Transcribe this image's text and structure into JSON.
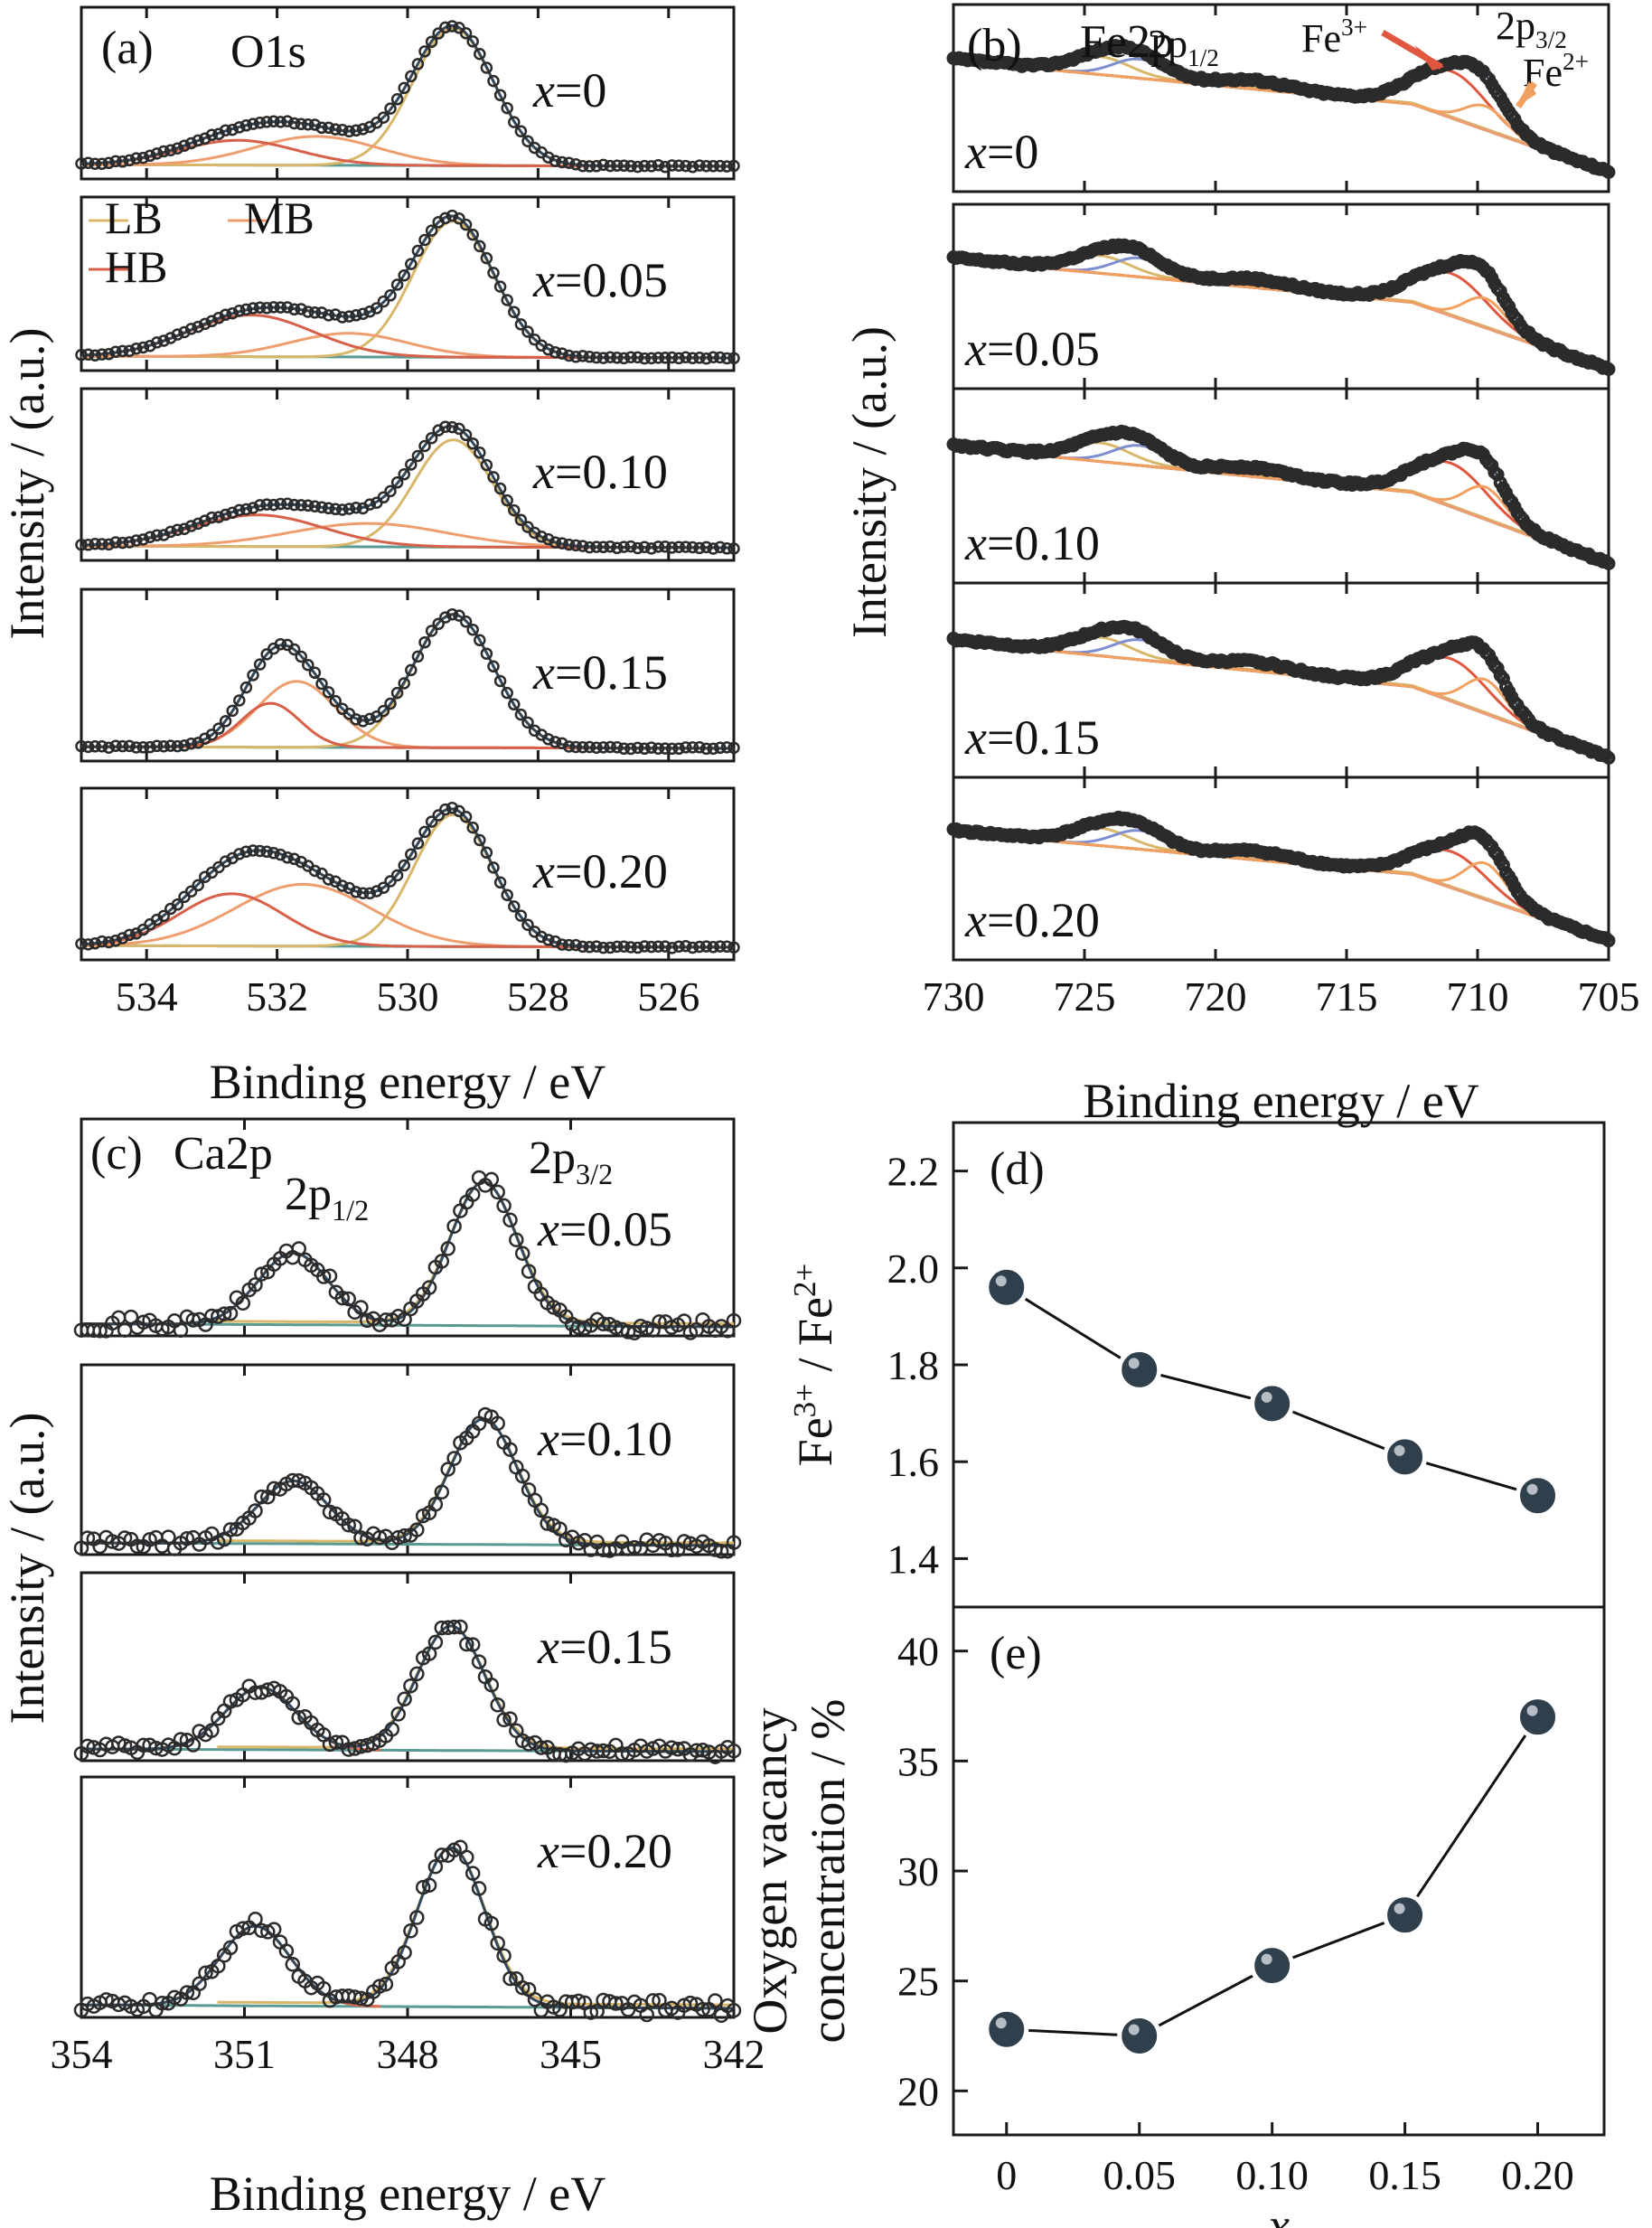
{
  "colors": {
    "frame": "#1a1a1a",
    "data_marker": "#2b2b2b",
    "envelope": "#33485a",
    "baseline": "#5a9a94",
    "LB": "#d9b76a",
    "MB": "#ee9e6e",
    "HB": "#d6604a",
    "fe_2p12_component": "#7d8ed0",
    "fe3_component": "#e0573f",
    "fe2_component": "#f0a060",
    "ca_2p12_component": "#e06a50",
    "ca_2p32_component": "#d9b76a",
    "scatter_marker": "#2f3f4c"
  },
  "chart_data": [
    {
      "id": "a",
      "type": "line",
      "panel_label": "(a)",
      "element_label": "O1s",
      "xlabel": "Binding energy / eV",
      "ylabel": "Intensity / (a.u.)",
      "xlim": [
        535,
        525
      ],
      "xticks": [
        "534",
        "532",
        "530",
        "528",
        "526"
      ],
      "legend": [
        "LB",
        "MB",
        "HB"
      ],
      "series": [
        {
          "x_label_prefix": "x",
          "x_label_value": "=0",
          "peaks": [
            {
              "name": "LB",
              "center": 529.3,
              "width": 0.62,
              "amp": 1.0
            },
            {
              "name": "MB",
              "center": 531.4,
              "width": 0.95,
              "amp": 0.21
            },
            {
              "name": "HB",
              "center": 532.6,
              "width": 0.9,
              "amp": 0.18
            }
          ]
        },
        {
          "x_label_prefix": "x",
          "x_label_value": "=0.05",
          "peaks": [
            {
              "name": "LB",
              "center": 529.3,
              "width": 0.62,
              "amp": 0.98
            },
            {
              "name": "MB",
              "center": 530.9,
              "width": 0.9,
              "amp": 0.17
            },
            {
              "name": "HB",
              "center": 532.4,
              "width": 0.95,
              "amp": 0.3
            }
          ]
        },
        {
          "x_label_prefix": "x",
          "x_label_value": "=0.10",
          "peaks": [
            {
              "name": "LB",
              "center": 529.3,
              "width": 0.6,
              "amp": 0.78
            },
            {
              "name": "MB",
              "center": 530.6,
              "width": 1.2,
              "amp": 0.17
            },
            {
              "name": "HB",
              "center": 532.3,
              "width": 1.0,
              "amp": 0.23
            }
          ]
        },
        {
          "x_label_prefix": "x",
          "x_label_value": "=0.15",
          "peaks": [
            {
              "name": "LB",
              "center": 529.3,
              "width": 0.62,
              "amp": 0.97
            },
            {
              "name": "MB",
              "center": 531.7,
              "width": 0.6,
              "amp": 0.48
            },
            {
              "name": "HB",
              "center": 532.1,
              "width": 0.45,
              "amp": 0.32
            }
          ]
        },
        {
          "x_label_prefix": "x",
          "x_label_value": "=0.20",
          "peaks": [
            {
              "name": "LB",
              "center": 529.3,
              "width": 0.6,
              "amp": 0.96
            },
            {
              "name": "MB",
              "center": 531.6,
              "width": 1.05,
              "amp": 0.45
            },
            {
              "name": "HB",
              "center": 532.7,
              "width": 0.8,
              "amp": 0.38
            }
          ]
        }
      ]
    },
    {
      "id": "b",
      "type": "line",
      "panel_label": "(b)",
      "element_label": "Fe2p",
      "xlabel": "Binding energy / eV",
      "ylabel": "Intensity / (a.u.)",
      "xlim": [
        730,
        705
      ],
      "xticks": [
        "730",
        "725",
        "720",
        "715",
        "710",
        "705"
      ],
      "annotations": {
        "p12": "2p",
        "p12_sub": "1/2",
        "p32": "2p",
        "p32_sub": "3/2",
        "fe3": "Fe",
        "fe3_sup": "3+",
        "fe2": "Fe",
        "fe2_sup": "2+"
      },
      "series": [
        {
          "x_label_prefix": "x",
          "x_label_value": "=0",
          "fe3_amp": 0.78,
          "fe2_amp": 0.4
        },
        {
          "x_label_prefix": "x",
          "x_label_value": "=0.05",
          "fe3_amp": 0.72,
          "fe2_amp": 0.5
        },
        {
          "x_label_prefix": "x",
          "x_label_value": "=0.10",
          "fe3_amp": 0.7,
          "fe2_amp": 0.52
        },
        {
          "x_label_prefix": "x",
          "x_label_value": "=0.15",
          "fe3_amp": 0.68,
          "fe2_amp": 0.55
        },
        {
          "x_label_prefix": "x",
          "x_label_value": "=0.20",
          "fe3_amp": 0.62,
          "fe2_amp": 0.62
        }
      ]
    },
    {
      "id": "c",
      "type": "line",
      "panel_label": "(c)",
      "element_label": "Ca2p",
      "xlabel": "Binding energy / eV",
      "ylabel": "Intensity / (a.u.)",
      "xlim": [
        354,
        342
      ],
      "xticks": [
        "354",
        "351",
        "348",
        "345",
        "342"
      ],
      "annotations": {
        "p12": "2p",
        "p12_sub": "1/2",
        "p32": "2p",
        "p32_sub": "3/2"
      },
      "series": [
        {
          "x_label_prefix": "x",
          "x_label_value": "=0.05",
          "p32_center": 346.6,
          "p12_center": 350.1
        },
        {
          "x_label_prefix": "x",
          "x_label_value": "=0.10",
          "p32_center": 346.6,
          "p12_center": 350.1
        },
        {
          "x_label_prefix": "x",
          "x_label_value": "=0.15",
          "p32_center": 347.2,
          "p12_center": 350.7
        },
        {
          "x_label_prefix": "x",
          "x_label_value": "=0.20",
          "p32_center": 347.2,
          "p12_center": 350.8
        }
      ]
    },
    {
      "id": "d",
      "type": "scatter",
      "panel_label": "(d)",
      "ylabel_parts": {
        "fe": "Fe",
        "sup3": "3+",
        "sep": " / Fe",
        "sup2": "2+"
      },
      "x": [
        0,
        0.05,
        0.1,
        0.15,
        0.2
      ],
      "y": [
        1.96,
        1.79,
        1.72,
        1.61,
        1.53
      ],
      "ylim": [
        1.3,
        2.3
      ],
      "yticks": [
        "1.4",
        "1.6",
        "1.8",
        "2.0",
        "2.2"
      ]
    },
    {
      "id": "e",
      "type": "scatter",
      "panel_label": "(e)",
      "ylabel_lines": [
        "Oxygen vacancy",
        "concentration / %"
      ],
      "xlabel": "x",
      "x": [
        0,
        0.05,
        0.1,
        0.15,
        0.2
      ],
      "y": [
        22.8,
        22.5,
        25.7,
        28,
        37
      ],
      "ylim": [
        18,
        42
      ],
      "yticks": [
        "20",
        "25",
        "30",
        "35",
        "40"
      ],
      "xticks": [
        "0",
        "0.05",
        "0.10",
        "0.15",
        "0.20"
      ]
    }
  ]
}
